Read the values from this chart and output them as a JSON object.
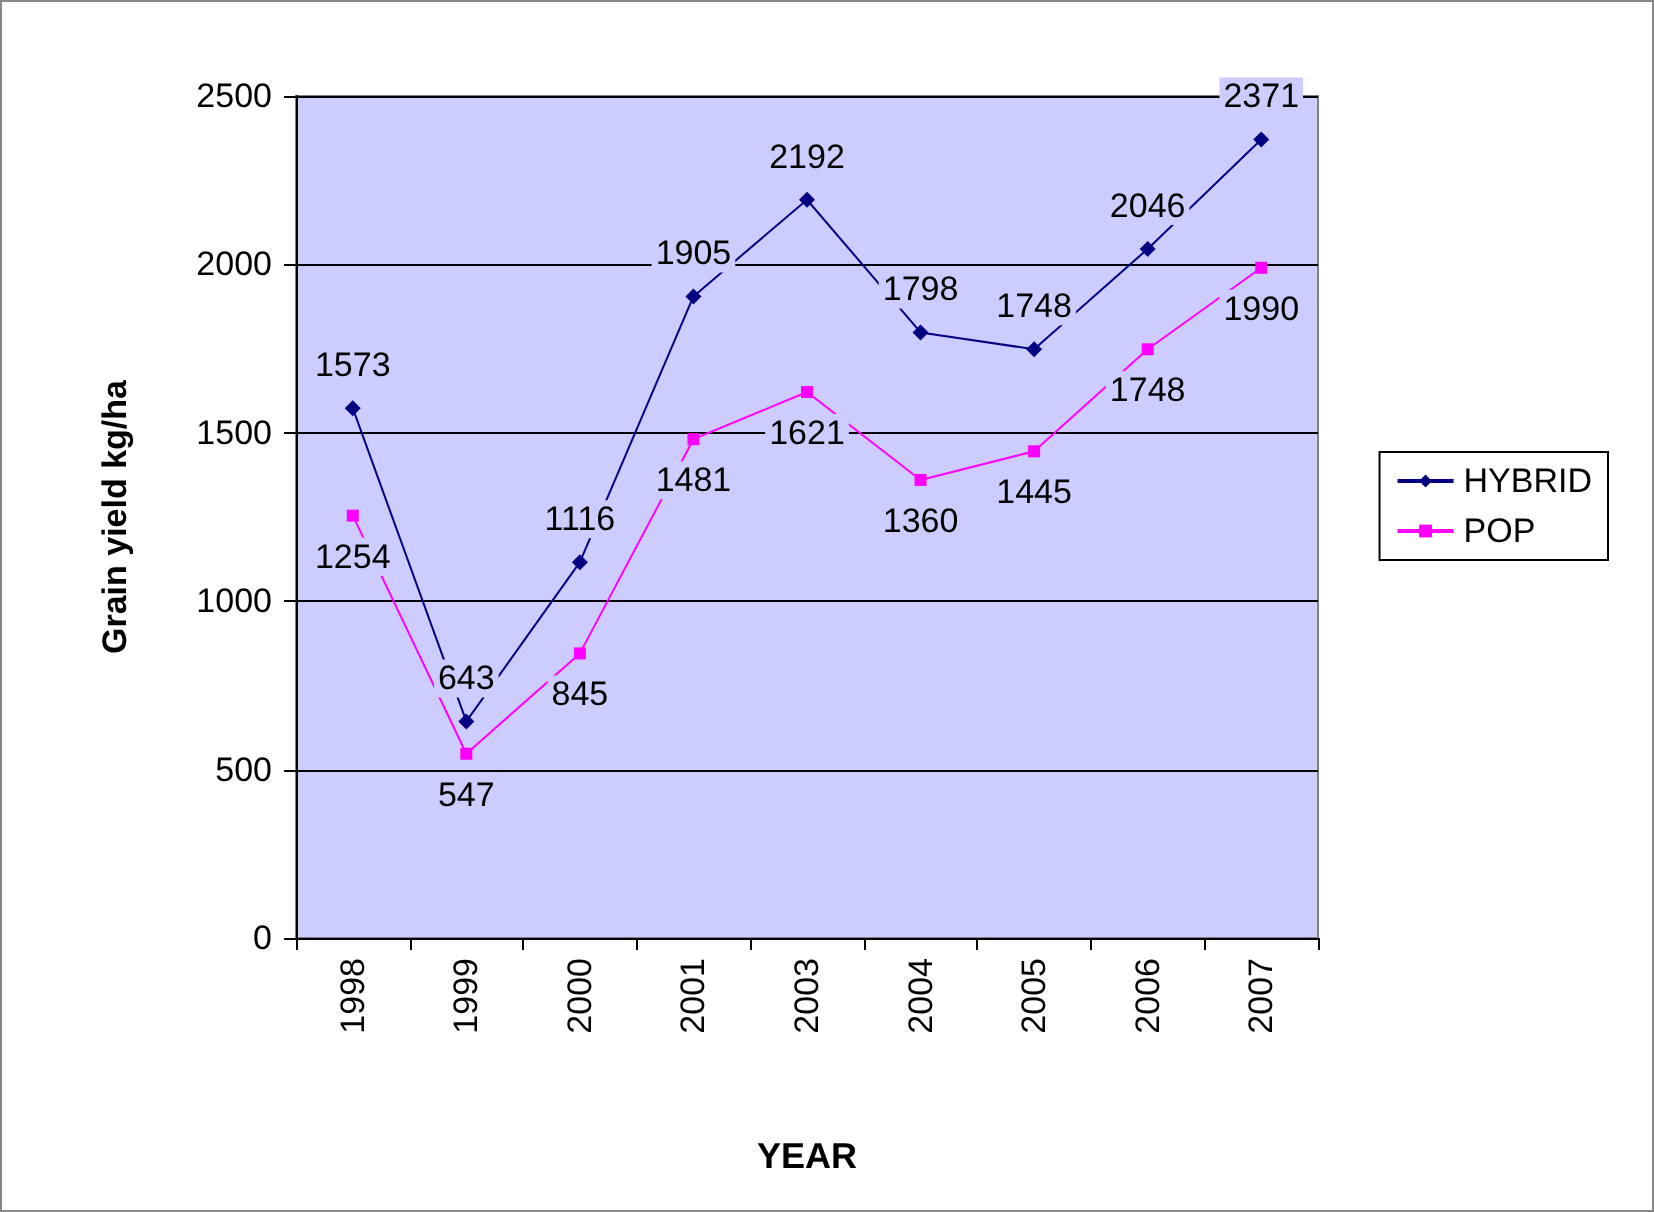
{
  "chart_data": {
    "type": "line",
    "xlabel": "YEAR",
    "ylabel": "Grain yield kg/ha",
    "categories": [
      "1998",
      "1999",
      "2000",
      "2001",
      "2003",
      "2004",
      "2005",
      "2006",
      "2007"
    ],
    "series": [
      {
        "name": "HYBRID",
        "color": "#000080",
        "marker": "diamond",
        "values": [
          1573,
          643,
          1116,
          1905,
          2192,
          1798,
          1748,
          2046,
          2371
        ]
      },
      {
        "name": "POP",
        "color": "#ff00ff",
        "marker": "square",
        "values": [
          1254,
          547,
          845,
          1481,
          1621,
          1360,
          1445,
          1748,
          1990
        ]
      }
    ],
    "ylim": [
      0,
      2500
    ],
    "yticks": [
      0,
      500,
      1000,
      1500,
      2000,
      2500
    ],
    "grid": "y",
    "legend": "right",
    "data_labels": true
  }
}
